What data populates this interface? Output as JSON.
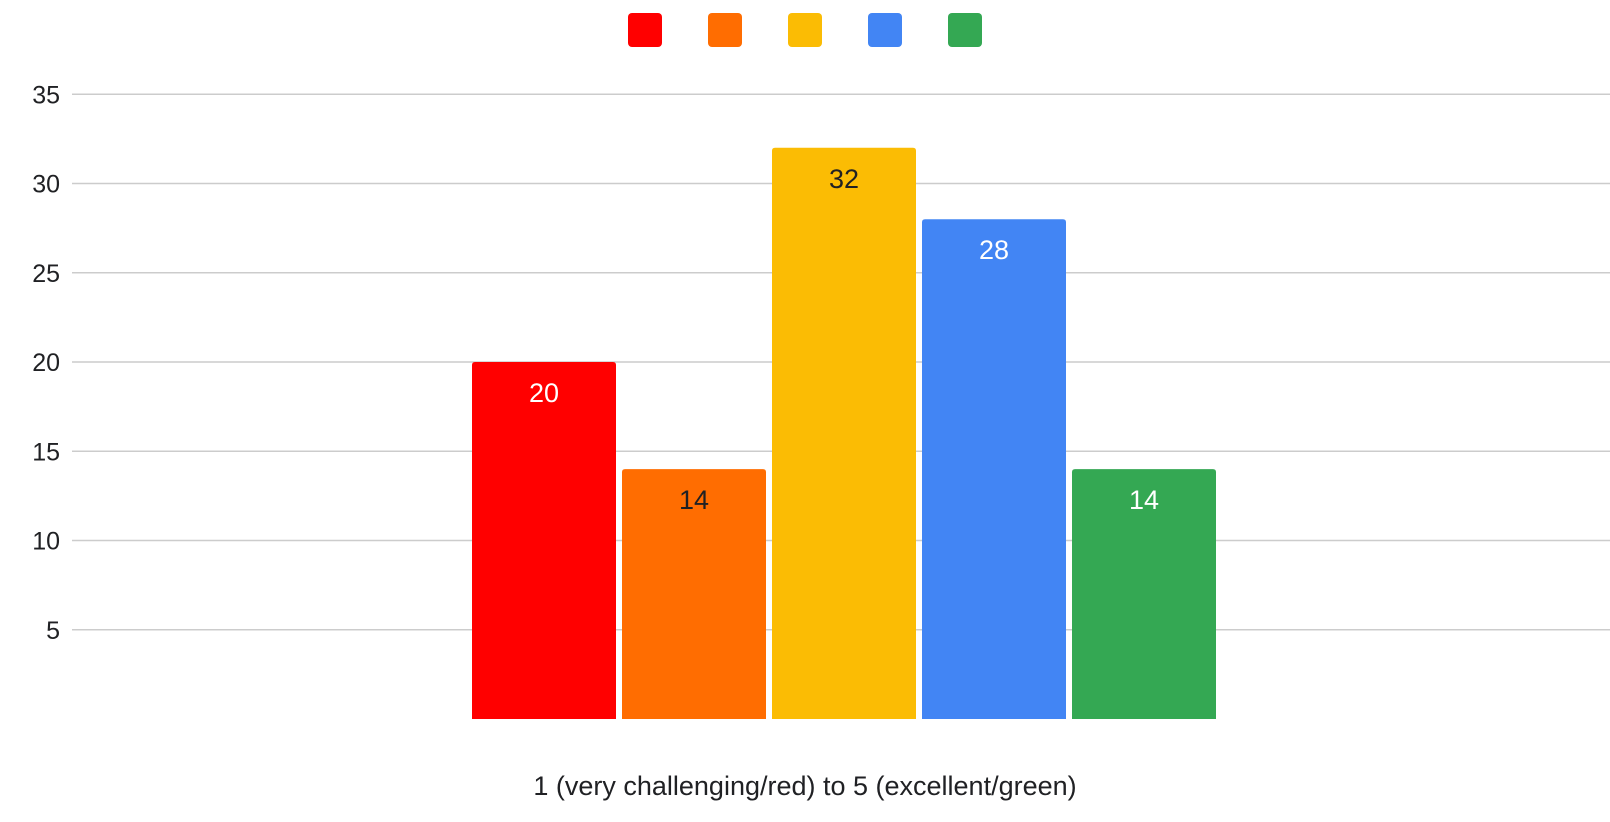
{
  "chart_data": {
    "type": "bar",
    "xlabel": "1 (very challenging/red) to 5 (excellent/green)",
    "ylabel": "",
    "ylim": [
      0,
      35
    ],
    "yticks": [
      5,
      10,
      15,
      20,
      25,
      30,
      35
    ],
    "grid": true,
    "legend": "top-center",
    "series": [
      {
        "value": 20,
        "label": "20",
        "color": "#ff0000",
        "label_color": "#ffffff"
      },
      {
        "value": 14,
        "label": "14",
        "color": "#ff6d01",
        "label_color": "#202124"
      },
      {
        "value": 32,
        "label": "32",
        "color": "#fbbc04",
        "label_color": "#202124"
      },
      {
        "value": 28,
        "label": "28",
        "color": "#4285f4",
        "label_color": "#ffffff"
      },
      {
        "value": 14,
        "label": "14",
        "color": "#34a853",
        "label_color": "#ffffff"
      }
    ]
  }
}
